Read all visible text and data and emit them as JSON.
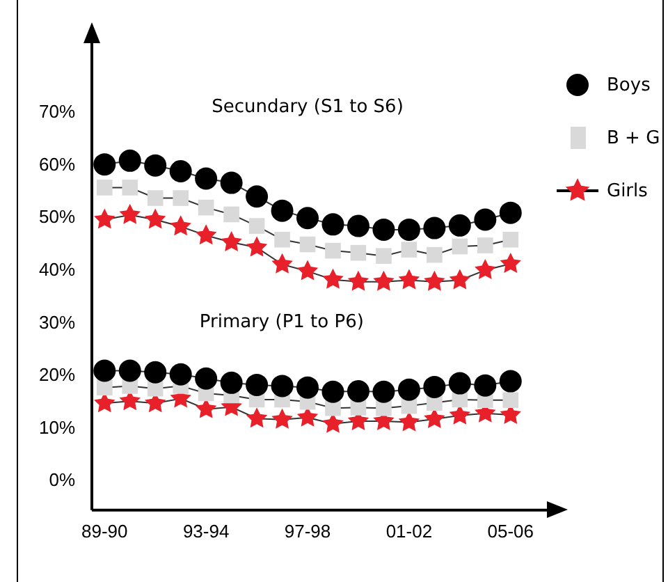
{
  "chart_data": {
    "type": "line",
    "annotations": [
      "Secundary (S1 to S6)",
      "Primary (P1 to P6)"
    ],
    "categories": [
      "89-90",
      null,
      null,
      null,
      "93-94",
      null,
      null,
      null,
      "97-98",
      null,
      null,
      null,
      "01-02",
      null,
      null,
      null,
      "05-06"
    ],
    "ylim": [
      -5.5,
      83.5
    ],
    "yticks": [
      {
        "value": 0,
        "label": "0%"
      },
      {
        "value": 10,
        "label": "10%"
      },
      {
        "value": 20,
        "label": "20%"
      },
      {
        "value": 30,
        "label": "30%"
      },
      {
        "value": 40,
        "label": "40%"
      },
      {
        "value": 50,
        "label": "50%"
      },
      {
        "value": 60,
        "label": "60%"
      },
      {
        "value": 70,
        "label": "70%"
      }
    ],
    "grid": false,
    "legend": "top right",
    "series": [
      {
        "name": "Boys",
        "color": "#000000",
        "marker": "circle",
        "values": [
          60.2,
          60.9,
          60.0,
          58.9,
          57.5,
          56.7,
          54.1,
          51.4,
          50.0,
          48.8,
          48.5,
          47.8,
          47.8,
          48.1,
          48.6,
          49.7,
          51.0
        ]
      },
      {
        "name": "B + G",
        "color": "#d9d9d9",
        "marker": "square",
        "values": [
          55.8,
          55.8,
          53.8,
          53.8,
          52.0,
          50.7,
          48.5,
          45.9,
          45.0,
          43.8,
          43.4,
          42.8,
          44.0,
          43.0,
          44.6,
          44.8,
          45.9
        ]
      },
      {
        "name": "Girls",
        "color": "#e8202a",
        "marker": "star",
        "values": [
          49.7,
          50.6,
          49.7,
          48.4,
          46.7,
          45.4,
          44.4,
          41.2,
          39.9,
          38.3,
          37.9,
          37.9,
          38.2,
          37.9,
          38.2,
          40.1,
          41.3
        ]
      },
      {
        "color": "#000000",
        "marker": "circle",
        "values": [
          21.0,
          21.0,
          20.7,
          20.3,
          19.5,
          18.7,
          18.3,
          18.1,
          17.8,
          17.0,
          17.1,
          17.0,
          17.4,
          17.9,
          18.6,
          18.2,
          19.0
        ]
      },
      {
        "color": "#d9d9d9",
        "marker": "square",
        "values": [
          17.8,
          18.1,
          17.6,
          18.1,
          16.7,
          16.3,
          15.5,
          15.5,
          15.1,
          13.9,
          14.0,
          13.9,
          14.3,
          14.9,
          15.5,
          15.4,
          15.4
        ]
      },
      {
        "color": "#e8202a",
        "marker": "star",
        "values": [
          14.8,
          15.2,
          14.8,
          15.7,
          13.7,
          14.1,
          11.9,
          11.7,
          12.1,
          10.9,
          11.4,
          11.4,
          11.2,
          11.8,
          12.5,
          12.9,
          12.6
        ]
      }
    ]
  }
}
